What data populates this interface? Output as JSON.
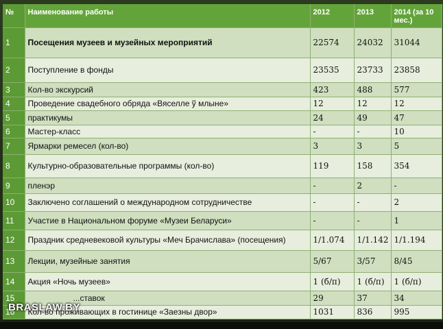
{
  "table": {
    "header": {
      "num": "№",
      "name": "Наименование работы",
      "y2012": "2012",
      "y2013": "2013",
      "y2014": "2014 (за 10 мес.)"
    },
    "rows": [
      {
        "num": "1",
        "name": "Посещения музеев и музейных мероприятий",
        "y2012": "22574",
        "y2013": "24032",
        "y2014": "31044"
      },
      {
        "num": "2",
        "name": "Поступление в фонды",
        "y2012": "23535",
        "y2013": "23733",
        "y2014": "23858"
      },
      {
        "num": "3",
        "name": "Кол-во экскурсий",
        "y2012": "423",
        "y2013": "488",
        "y2014": "577"
      },
      {
        "num": "4",
        "name": "Проведение свадебного обряда «Вяселле ў млыне»",
        "y2012": "12",
        "y2013": "12",
        "y2014": "12"
      },
      {
        "num": "5",
        "name": "практикумы",
        "y2012": "24",
        "y2013": "49",
        "y2014": "47"
      },
      {
        "num": "6",
        "name": "Мастер-класс",
        "y2012": "-",
        "y2013": "-",
        "y2014": "10"
      },
      {
        "num": "7",
        "name": "Ярмарки ремесел (кол-во)",
        "y2012": "3",
        "y2013": "3",
        "y2014": "5"
      },
      {
        "num": "8",
        "name": "Культурно-образовательные программы (кол-во)",
        "y2012": "119",
        "y2013": "158",
        "y2014": "354"
      },
      {
        "num": "9",
        "name": "пленэр",
        "y2012": "-",
        "y2013": "2",
        "y2014": "-"
      },
      {
        "num": "10",
        "name": "Заключено соглашений о международном сотрудничестве",
        "y2012": "-",
        "y2013": "-",
        "y2014": "2"
      },
      {
        "num": "11",
        "name": "Участие в Национальном форуме «Музеи Беларуси»",
        "y2012": "-",
        "y2013": "-",
        "y2014": "1"
      },
      {
        "num": "12",
        "name": "Праздник средневековой культуры «Меч Брачислава» (посещения)",
        "y2012": "1/1.074",
        "y2013": "1/1.142",
        "y2014": "1/1.194"
      },
      {
        "num": "13",
        "name": "Лекции, музейные занятия",
        "y2012": "5/67",
        "y2013": "3/57",
        "y2014": "8/45"
      },
      {
        "num": "14",
        "name": "Акция «Ночь музеев»",
        "y2012": "1 (б/п)",
        "y2013": "1 (б/п)",
        "y2014": "1 (б/п)"
      },
      {
        "num": "15",
        "name": "...ставок",
        "y2012": "29",
        "y2013": "37",
        "y2014": "34"
      },
      {
        "num": "16",
        "name": "Кол-во проживающих в гостинице «Заезны двор»",
        "y2012": "1031",
        "y2013": "836",
        "y2014": "995"
      }
    ]
  },
  "watermark": "BRASLAW.BY"
}
